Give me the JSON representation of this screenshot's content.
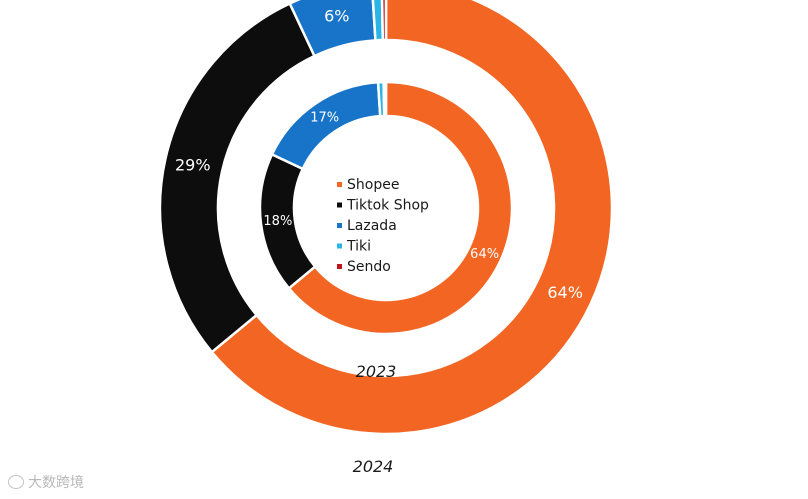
{
  "chart_data": [
    {
      "type": "donut",
      "year": "2023",
      "ring": "inner",
      "categories": [
        "Shopee",
        "Tiktok Shop",
        "Lazada",
        "Tiki",
        "Sendo"
      ],
      "values": [
        64,
        18,
        17,
        0.7,
        0.3
      ],
      "labels": [
        "64%",
        "18%",
        "17%",
        "",
        ""
      ]
    },
    {
      "type": "donut",
      "year": "2024",
      "ring": "outer",
      "categories": [
        "Shopee",
        "Tiktok Shop",
        "Lazada",
        "Tiki",
        "Sendo"
      ],
      "values": [
        64,
        29,
        6,
        0.7,
        0.3
      ],
      "labels": [
        "64%",
        "29%",
        "6%",
        "",
        ""
      ]
    }
  ],
  "legend": [
    {
      "name": "Shopee",
      "color": "#f26522"
    },
    {
      "name": "Tiktok Shop",
      "color": "#0d0d0d"
    },
    {
      "name": "Lazada",
      "color": "#1874c8"
    },
    {
      "name": "Tiki",
      "color": "#29b6e6"
    },
    {
      "name": "Sendo",
      "color": "#c0141c"
    }
  ],
  "watermark": "大数跨境"
}
